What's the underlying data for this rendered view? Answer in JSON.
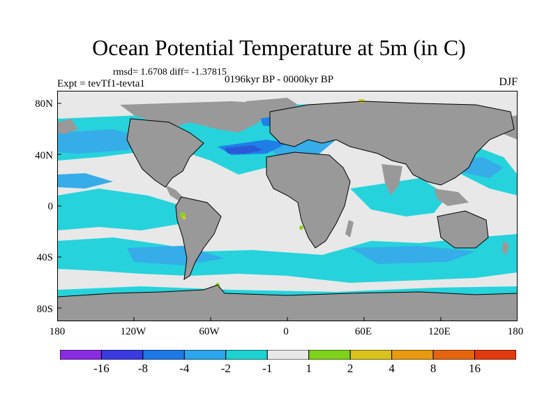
{
  "title": "Ocean Potential Temperature at 5m (in C)",
  "stats": "rmsd= 1.6708 diff= -1.37815",
  "experiment": "Expt = tevTf1-tevta1",
  "period": "0196kyr BP - 0000kyr BP",
  "season": "DJF",
  "lat_ticks": [
    "80N",
    "40N",
    "0",
    "40S",
    "80S"
  ],
  "lon_ticks": [
    "180",
    "120W",
    "60W",
    "0",
    "60E",
    "120E",
    "180"
  ],
  "colorbar": {
    "colors": [
      "#8a2be2",
      "#3a3ae0",
      "#1e78e6",
      "#2aa6ec",
      "#1ed2d2",
      "#e8e8e8",
      "#7fd21a",
      "#d9c21a",
      "#e89b10",
      "#e5650e",
      "#e23a0e"
    ],
    "labels": [
      "-16",
      "-8",
      "-4",
      "-2",
      "-1",
      "1",
      "2",
      "4",
      "8",
      "16"
    ]
  },
  "map_colors": {
    "land": "#999999",
    "neutral": "#e8e8e8",
    "cyan": "#26d3dc",
    "light_blue": "#36ace8",
    "mid_blue": "#1f7fe6",
    "dark_blue": "#2b58d8",
    "green": "#8cd41e",
    "yellow": "#d8c83a"
  }
}
